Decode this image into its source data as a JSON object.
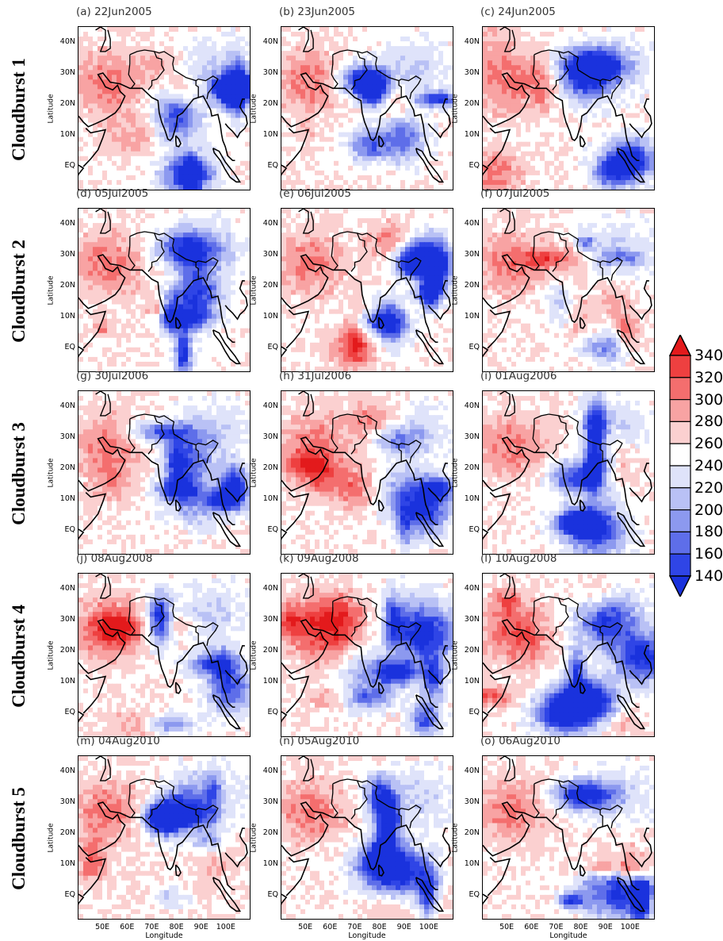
{
  "rows": [
    {
      "label": "Cloudburst 1",
      "panels": [
        {
          "title": "(a) 22Jun2005",
          "seed": 1
        },
        {
          "title": "(b) 23Jun2005",
          "seed": 2
        },
        {
          "title": "(c) 24Jun2005",
          "seed": 3
        }
      ]
    },
    {
      "label": "Cloudburst 2",
      "panels": [
        {
          "title": "(d) 05Jul2005",
          "seed": 4
        },
        {
          "title": "(e) 06Jul2005",
          "seed": 5
        },
        {
          "title": "(f) 07Jul2005",
          "seed": 6
        }
      ]
    },
    {
      "label": "Cloudburst 3",
      "panels": [
        {
          "title": "(g) 30Jul2006",
          "seed": 7
        },
        {
          "title": "(h) 31Jul2006",
          "seed": 8
        },
        {
          "title": "(i) 01Aug2006",
          "seed": 9
        }
      ]
    },
    {
      "label": "Cloudburst 4",
      "panels": [
        {
          "title": "(j) 08Aug2008",
          "seed": 10
        },
        {
          "title": "(k) 09Aug2008",
          "seed": 11
        },
        {
          "title": "(l) 10Aug2008",
          "seed": 12
        }
      ]
    },
    {
      "label": "Cloudburst 5",
      "panels": [
        {
          "title": "(m) 04Aug2010",
          "seed": 13
        },
        {
          "title": "(n) 05Aug2010",
          "seed": 14
        },
        {
          "title": "(o) 06Aug2010",
          "seed": 15
        }
      ]
    }
  ],
  "axes": {
    "y_label": "Latitude",
    "x_label": "Longitude",
    "lat_ticks": [
      "40N",
      "30N",
      "20N",
      "10N",
      "EQ"
    ],
    "lon_ticks": [
      "50E",
      "60E",
      "70E",
      "80E",
      "90E",
      "100E"
    ],
    "lat_range": [
      -8,
      45
    ],
    "lon_range": [
      40,
      110
    ]
  },
  "colorbar": {
    "levels": [
      "340",
      "320",
      "300",
      "280",
      "260",
      "240",
      "220",
      "200",
      "180",
      "160",
      "140"
    ],
    "colors": [
      "#e31a1c",
      "#ee4040",
      "#f46e6e",
      "#f8a3a3",
      "#fbd0d0",
      "#ffffff",
      "#dfe3fa",
      "#b9c1f5",
      "#8c99ef",
      "#5e6ee9",
      "#2f45e6",
      "#1a32dd"
    ]
  }
}
